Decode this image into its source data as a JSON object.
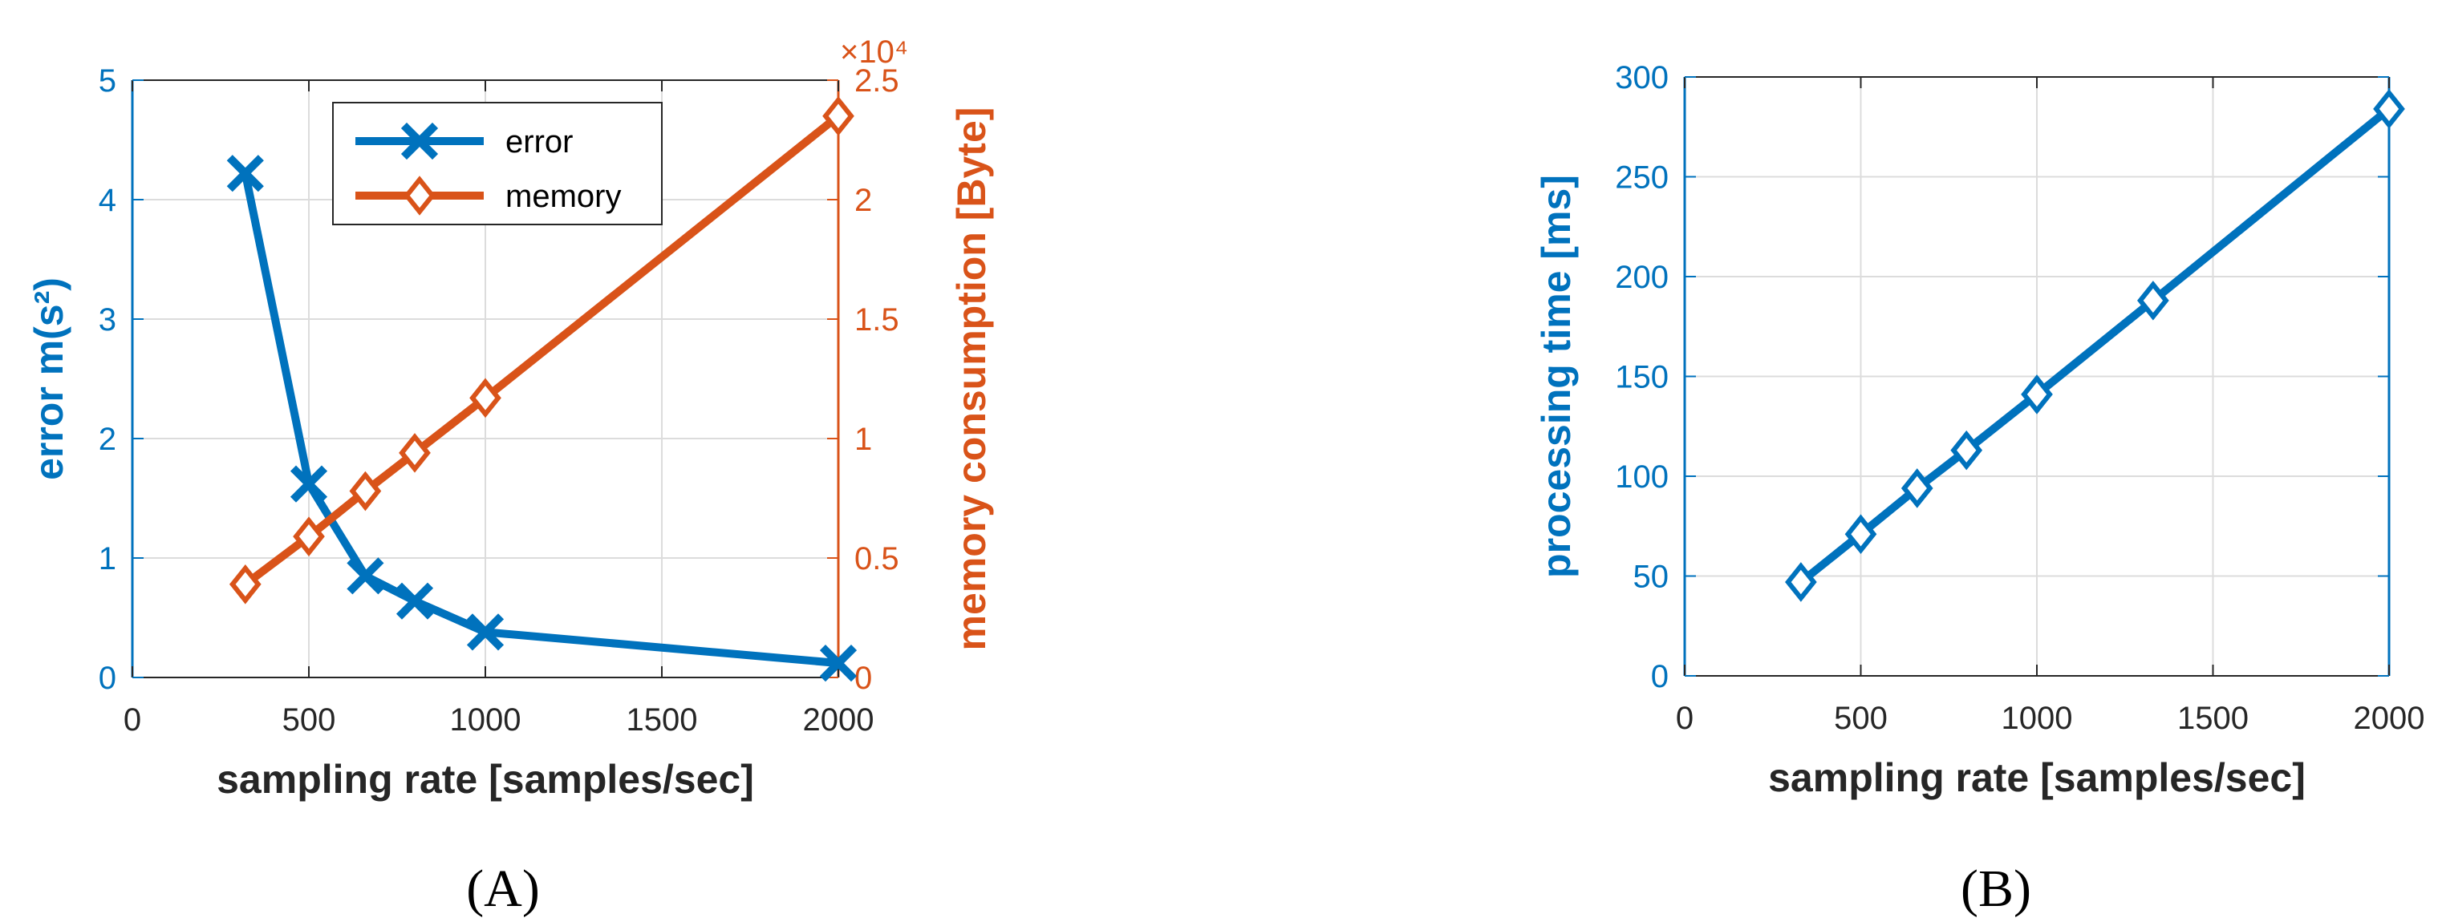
{
  "colors": {
    "blue": "#0072BD",
    "orange": "#D95319",
    "grid": "#dcdcdc",
    "text": "#262626"
  },
  "chart_data": [
    {
      "type": "line",
      "panel_label": "(A)",
      "xlabel": "sampling rate [samples/sec]",
      "ylabel": "error m(s²)",
      "ylabel_right": "memory consumption [Byte]",
      "right_exponent": "×10⁴",
      "xlim": [
        0,
        2000
      ],
      "ylim": [
        0,
        5
      ],
      "ylim_right": [
        0,
        2.5
      ],
      "x_ticks": [
        "0",
        "500",
        "1000",
        "1500",
        "2000"
      ],
      "y_ticks": [
        "0",
        "1",
        "2",
        "3",
        "4",
        "5"
      ],
      "y_ticks_right": [
        "0",
        "0.5",
        "1",
        "1.5",
        "2",
        "2.5"
      ],
      "grid": true,
      "legend_position": "top-center",
      "series": [
        {
          "name": "error",
          "axis": "left",
          "marker": "x",
          "x": [
            320,
            500,
            660,
            800,
            1000,
            2000
          ],
          "y": [
            4.22,
            1.62,
            0.85,
            0.64,
            0.38,
            0.12
          ]
        },
        {
          "name": "memory",
          "axis": "right",
          "marker": "diamond",
          "x": [
            320,
            500,
            660,
            800,
            1000,
            2000
          ],
          "y": [
            0.39,
            0.59,
            0.78,
            0.94,
            1.17,
            2.35
          ]
        }
      ]
    },
    {
      "type": "line",
      "panel_label": "(B)",
      "xlabel": "sampling rate [samples/sec]",
      "ylabel": "processing time [ms]",
      "xlim": [
        0,
        2000
      ],
      "ylim": [
        0,
        300
      ],
      "x_ticks": [
        "0",
        "500",
        "1000",
        "1500",
        "2000"
      ],
      "y_ticks": [
        "0",
        "50",
        "100",
        "150",
        "200",
        "250",
        "300"
      ],
      "grid": true,
      "series": [
        {
          "marker": "diamond",
          "x": [
            330,
            500,
            660,
            800,
            1000,
            1330,
            2000
          ],
          "y": [
            47,
            71,
            94,
            113,
            141,
            188,
            284
          ]
        }
      ]
    }
  ]
}
